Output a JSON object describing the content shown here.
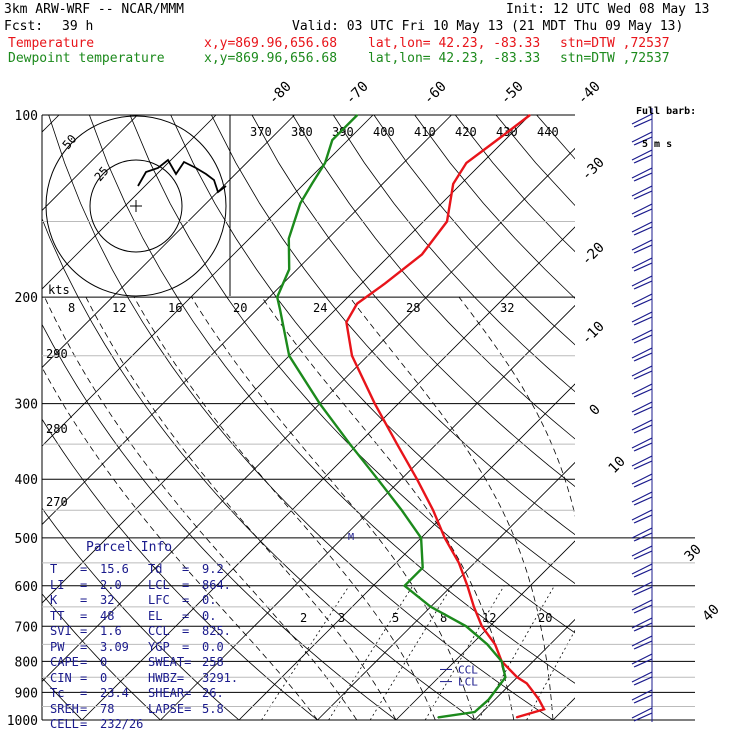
{
  "header": {
    "model": "3km ARW-WRF -- NCAR/MMM",
    "init": "Init: 12 UTC Wed 08 May 13",
    "fcst_label": "Fcst:",
    "fcst_value": "39 h",
    "valid": "Valid: 03 UTC Fri 10 May 13 (21 MDT Thu 09 May 13)",
    "temp_line": {
      "label": "Temperature",
      "xy": "x,y=869.96,656.68",
      "latlon": "lat,lon= 42.23, -83.33",
      "stn": "stn=DTW ,72537"
    },
    "dew_line": {
      "label": "Dewpoint temperature",
      "xy": "x,y=869.96,656.68",
      "latlon": "lat,lon= 42.23, -83.33",
      "stn": "stn=DTW ,72537"
    },
    "barb_key": [
      "Full barb:",
      "5 m s"
    ]
  },
  "colors": {
    "temperature": "#e8141a",
    "dewpoint": "#1c8a1c",
    "wind": "#1a1a8c",
    "grid": "#000000"
  },
  "chart_data": {
    "type": "line",
    "subtype": "skew-T log-P sounding",
    "pressure_ticks": [
      "100",
      "200",
      "300",
      "400",
      "500",
      "600",
      "700",
      "800",
      "900",
      "1000"
    ],
    "isotherm_labels": [
      "-80",
      "-70",
      "-60",
      "-50",
      "-40",
      "-30",
      "-20",
      "-10",
      "0",
      "10",
      "30",
      "40"
    ],
    "theta_labels": [
      "370",
      "380",
      "390",
      "400",
      "410",
      "420",
      "430",
      "440"
    ],
    "theta_left_labels": [
      "290",
      "280",
      "270"
    ],
    "mixing_ratio_labels": [
      "2",
      "3",
      "5",
      "8",
      "12",
      "20"
    ],
    "hodograph": {
      "speed_unit": "kts",
      "ring_labels": [
        "25",
        "50"
      ],
      "axis_labels": [
        "8",
        "12",
        "16",
        "20",
        "24",
        "28",
        "32"
      ]
    },
    "series": [
      {
        "name": "Temperature",
        "color": "#e8141a",
        "points": [
          {
            "p": 990,
            "t": 15.0
          },
          {
            "p": 960,
            "t": 17.5
          },
          {
            "p": 925,
            "t": 15.6
          },
          {
            "p": 900,
            "t": 14.0
          },
          {
            "p": 870,
            "t": 12.0
          },
          {
            "p": 850,
            "t": 10.0
          },
          {
            "p": 800,
            "t": 6.0
          },
          {
            "p": 750,
            "t": 3.0
          },
          {
            "p": 700,
            "t": -1.0
          },
          {
            "p": 650,
            "t": -4.5
          },
          {
            "p": 600,
            "t": -8.0
          },
          {
            "p": 550,
            "t": -12.0
          },
          {
            "p": 500,
            "t": -17.0
          },
          {
            "p": 450,
            "t": -22.0
          },
          {
            "p": 400,
            "t": -28.0
          },
          {
            "p": 350,
            "t": -35.0
          },
          {
            "p": 300,
            "t": -43.0
          },
          {
            "p": 250,
            "t": -52.0
          },
          {
            "p": 220,
            "t": -57.0
          },
          {
            "p": 205,
            "t": -58.0
          },
          {
            "p": 190,
            "t": -57.0
          },
          {
            "p": 170,
            "t": -56.0
          },
          {
            "p": 150,
            "t": -57.0
          },
          {
            "p": 130,
            "t": -61.0
          },
          {
            "p": 120,
            "t": -62.0
          },
          {
            "p": 110,
            "t": -61.0
          },
          {
            "p": 100,
            "t": -60.0
          }
        ]
      },
      {
        "name": "Dewpoint temperature",
        "color": "#1c8a1c",
        "points": [
          {
            "p": 990,
            "t": 5.0
          },
          {
            "p": 970,
            "t": 9.0
          },
          {
            "p": 925,
            "t": 9.2
          },
          {
            "p": 850,
            "t": 8.5
          },
          {
            "p": 800,
            "t": 6.0
          },
          {
            "p": 750,
            "t": 2.0
          },
          {
            "p": 700,
            "t": -3.0
          },
          {
            "p": 650,
            "t": -10.0
          },
          {
            "p": 600,
            "t": -16.0
          },
          {
            "p": 560,
            "t": -16.0
          },
          {
            "p": 500,
            "t": -20.0
          },
          {
            "p": 450,
            "t": -26.0
          },
          {
            "p": 400,
            "t": -33.0
          },
          {
            "p": 350,
            "t": -41.0
          },
          {
            "p": 300,
            "t": -50.0
          },
          {
            "p": 250,
            "t": -60.0
          },
          {
            "p": 210,
            "t": -67.0
          },
          {
            "p": 200,
            "t": -69.0
          },
          {
            "p": 180,
            "t": -71.0
          },
          {
            "p": 160,
            "t": -75.0
          },
          {
            "p": 140,
            "t": -78.0
          },
          {
            "p": 130,
            "t": -79.0
          },
          {
            "p": 120,
            "t": -80.0
          },
          {
            "p": 110,
            "t": -82.0
          },
          {
            "p": 100,
            "t": -82.0
          }
        ]
      }
    ],
    "level_marks": [
      {
        "label": "CCL",
        "p": 825
      },
      {
        "label": "LCL",
        "p": 864
      }
    ],
    "mixing_ratio_label": "M"
  },
  "parcel_info": {
    "title": "Parcel Info",
    "rows": [
      [
        "T",
        "=",
        "15.6",
        "Td",
        "=",
        "9.2"
      ],
      [
        "LI",
        "=",
        "2.0",
        "LCL",
        "=",
        "864."
      ],
      [
        "K",
        "=",
        "32",
        "LFC",
        "=",
        "0."
      ],
      [
        "TT",
        "=",
        "48",
        "EL",
        "=",
        "0."
      ],
      [
        "SVI",
        "=",
        "1.6",
        "CCL",
        "=",
        "825."
      ],
      [
        "PW",
        "=",
        "3.09",
        "YGP",
        "=",
        "0.0"
      ],
      [
        "CAPE",
        "=",
        "0",
        "SWEAT=",
        "",
        "258"
      ],
      [
        "CIN",
        "=",
        "0",
        "HWBZ=",
        "",
        "3291."
      ],
      [
        "Tc",
        "=",
        "23.4",
        "SHEAR=",
        "",
        "26."
      ],
      [
        "SREH",
        "=",
        "78",
        "LAPSE=",
        "",
        "5.8"
      ],
      [
        "CELL",
        "=",
        "232/26",
        "",
        "",
        ""
      ]
    ]
  }
}
